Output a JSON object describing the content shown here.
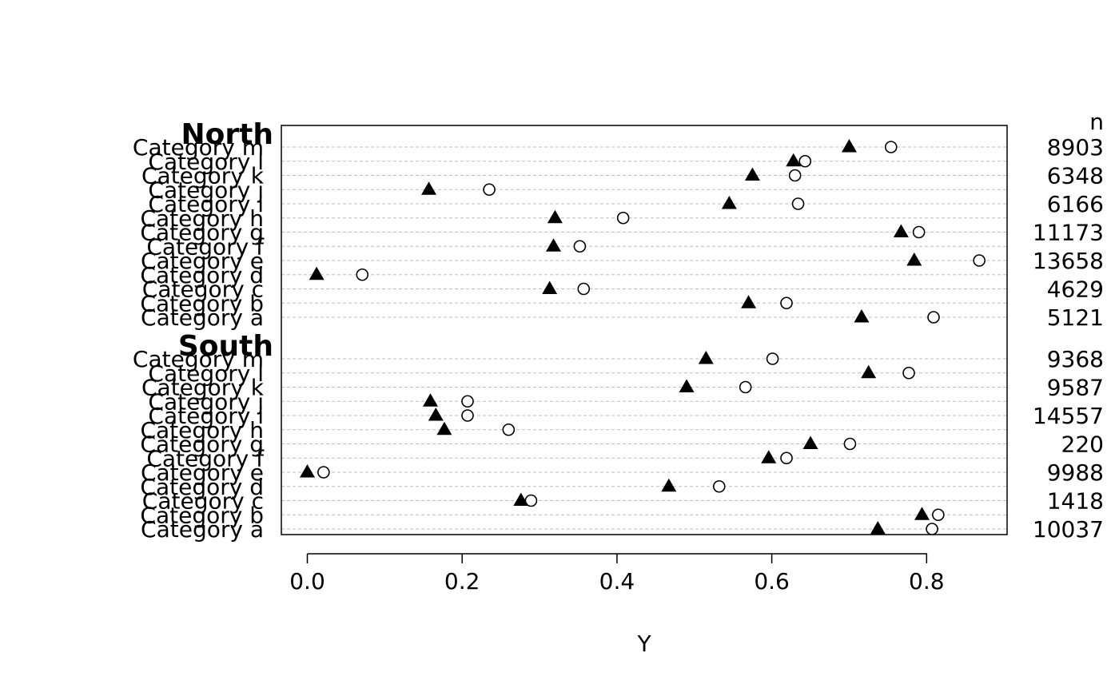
{
  "chart_data": {
    "type": "scatter",
    "xlabel": "Y",
    "n_header": "n",
    "xlim": [
      -0.033,
      0.9
    ],
    "xticks": [
      0.0,
      0.2,
      0.4,
      0.6,
      0.8
    ],
    "xtick_labels": [
      "0.0",
      "0.2",
      "0.4",
      "0.6",
      "0.8"
    ],
    "grid": "dotted horizontal lines per category",
    "series": [
      {
        "marker": "filled-triangle",
        "color": "#000000"
      },
      {
        "marker": "open-circle",
        "color": "#000000"
      }
    ],
    "groups": [
      {
        "name": "North",
        "rows": [
          {
            "label": "Category m",
            "triangle": 0.7,
            "circle": 0.754,
            "n": "8903"
          },
          {
            "label": "Category l",
            "triangle": 0.628,
            "circle": 0.643,
            "n": ""
          },
          {
            "label": "Category k",
            "triangle": 0.575,
            "circle": 0.63,
            "n": "6348"
          },
          {
            "label": "Category j",
            "triangle": 0.157,
            "circle": 0.235,
            "n": ""
          },
          {
            "label": "Category i",
            "triangle": 0.545,
            "circle": 0.634,
            "n": "6166"
          },
          {
            "label": "Category h",
            "triangle": 0.32,
            "circle": 0.408,
            "n": ""
          },
          {
            "label": "Category g",
            "triangle": 0.767,
            "circle": 0.79,
            "n": "11173"
          },
          {
            "label": "Category f",
            "triangle": 0.318,
            "circle": 0.352,
            "n": ""
          },
          {
            "label": "Category e",
            "triangle": 0.784,
            "circle": 0.868,
            "n": "13658"
          },
          {
            "label": "Category d",
            "triangle": 0.012,
            "circle": 0.071,
            "n": ""
          },
          {
            "label": "Category c",
            "triangle": 0.313,
            "circle": 0.357,
            "n": "4629"
          },
          {
            "label": "Category b",
            "triangle": 0.57,
            "circle": 0.619,
            "n": ""
          },
          {
            "label": "Category a",
            "triangle": 0.716,
            "circle": 0.809,
            "n": "5121"
          }
        ]
      },
      {
        "name": "South",
        "rows": [
          {
            "label": "Category m",
            "triangle": 0.515,
            "circle": 0.601,
            "n": "9368"
          },
          {
            "label": "Category l",
            "triangle": 0.725,
            "circle": 0.777,
            "n": ""
          },
          {
            "label": "Category k",
            "triangle": 0.49,
            "circle": 0.566,
            "n": "9587"
          },
          {
            "label": "Category j",
            "triangle": 0.159,
            "circle": 0.207,
            "n": ""
          },
          {
            "label": "Category i",
            "triangle": 0.166,
            "circle": 0.207,
            "n": "14557"
          },
          {
            "label": "Category h",
            "triangle": 0.177,
            "circle": 0.26,
            "n": ""
          },
          {
            "label": "Category g",
            "triangle": 0.65,
            "circle": 0.701,
            "n": "220"
          },
          {
            "label": "Category f",
            "triangle": 0.596,
            "circle": 0.619,
            "n": ""
          },
          {
            "label": "Category e",
            "triangle": 0.0,
            "circle": 0.021,
            "n": "9988"
          },
          {
            "label": "Category d",
            "triangle": 0.467,
            "circle": 0.532,
            "n": ""
          },
          {
            "label": "Category c",
            "triangle": 0.276,
            "circle": 0.289,
            "n": "1418"
          },
          {
            "label": "Category b",
            "triangle": 0.794,
            "circle": 0.815,
            "n": ""
          },
          {
            "label": "Category a",
            "triangle": 0.737,
            "circle": 0.807,
            "n": "10037"
          }
        ]
      }
    ]
  }
}
